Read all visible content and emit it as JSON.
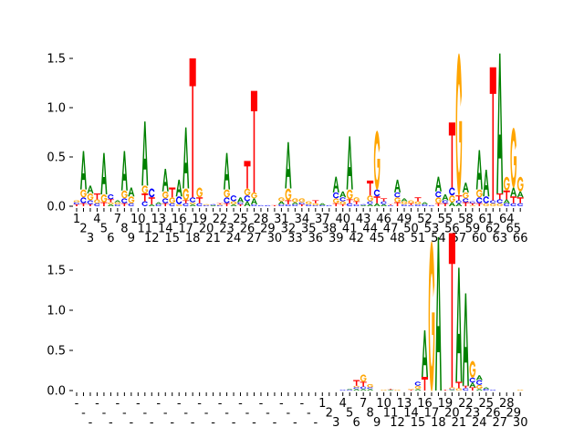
{
  "colors": {
    "A": "#008000",
    "C": "#0000ff",
    "G": "#ffa500",
    "T": "#ff0000"
  },
  "chart_data": [
    {
      "type": "sequence-logo",
      "title": "",
      "xlabel": "",
      "ylabel": "",
      "ylim": [
        0,
        1.6
      ],
      "yticks": [
        "0.0",
        "0.5",
        "1.0",
        "1.5"
      ],
      "ytick_values": [
        0,
        0.5,
        1.0,
        1.5
      ],
      "xtick_labels": [
        "1",
        "2",
        "3",
        "4",
        "5",
        "6",
        "7",
        "8",
        "9",
        "10",
        "11",
        "12",
        "13",
        "14",
        "15",
        "16",
        "17",
        "18",
        "19",
        "20",
        "21",
        "22",
        "23",
        "24",
        "25",
        "26",
        "27",
        "28",
        "29",
        "30",
        "31",
        "32",
        "33",
        "34",
        "35",
        "36",
        "37",
        "38",
        "39",
        "40",
        "41",
        "42",
        "43",
        "44",
        "45",
        "46",
        "47",
        "48",
        "49",
        "50",
        "51",
        "52",
        "53",
        "54",
        "55",
        "56",
        "57",
        "58",
        "59",
        "60",
        "61",
        "62",
        "63",
        "64",
        "65",
        "66"
      ],
      "stacks": [
        "T.02 C.02 G.02",
        "T.03 C.06 G.08 A.39",
        "T.02 C.04 G.07 A.08",
        "C.03 G.04 T.06",
        "T.04 G.08 A.42",
        "A.02 G.02 T.03 C.05",
        "C.02 G.02 A.02",
        "T.03 C.05 G.08 A.40",
        "C.03 G.07 A.09",
        "",
        "C.05 T.08 G.08 A.65",
        "A.02 T.07 C.09",
        "C.02 A.02",
        "T.03 C.05 G.07 A.23",
        "C.03 G.06 T.10",
        "G.02 C.08 A.17",
        "C.03 T.03 G.12 A.62",
        "A.02 G.02 C.05 T1.41",
        "C.03 T.06 G.10",
        "C.01 G.01",
        "A.01 C.01",
        "C.01 G.01 T.01",
        "T.03 C.06 G.08 A.37",
        "A.02 G.03 C.06",
        "T.02 C.02 A.05",
        "A.05 C.06 G.07 T.28",
        "C.02 A.06 G.06 T1.03",
        "C.01",
        "C.01",
        "T.01",
        "C.02 A.03 G.04",
        "C.02 T.04 G.12 A.47",
        "C.02 A.02 G.04",
        "T.02 C.02 G.04",
        "C.02 G.03",
        "C.01 G.02 T.03",
        "C.01 A.02",
        "C.01",
        "T.03 G.05 C.06 A.16",
        "T.02 G.03 C.04 A.06",
        "C.03 T.04 G.10 A.54",
        "C.02 T.03 G.04",
        "A.01 C.01",
        "A.02 C.03 G.06 T.15",
        "A.03 T.07 C.07 G.60",
        "A.02 C.03 T.03",
        "C.01 T.01",
        "T.04 G.05 C.05 A.13",
        "C.02 G.03 A.03",
        "C.01 T.02 G.03",
        "C.02 G.03 T.04",
        "C.02 A.02",
        "C.01",
        "T.03 G.06 C.06 A.15",
        "T.03 C.03 A.06",
        "A.04 G.07 C.08 T.66",
        "A.03 C.03 T.05 G1.45",
        "T.04 C.04 G.06 A.10",
        "G.01 T.02 C.02",
        "T.03 C.06 G.08 A.40",
        "G.03 C.07 A.27",
        "G.03 C.03 T1.35",
        "G.03 C.04 T.06 A1.42",
        "C.03 A.04 T.09 G.14",
        "C.03 T.07 A.09 G.61",
        "C.03 T.06 A.06 G.15"
      ]
    },
    {
      "type": "sequence-logo",
      "title": "",
      "xlabel": "",
      "ylabel": "",
      "ylim": [
        0,
        1.95
      ],
      "yticks": [
        "0.0",
        "0.5",
        "1.0",
        "1.5"
      ],
      "ytick_values": [
        0,
        0.5,
        1.0,
        1.5
      ],
      "xtick_labels": [
        "-",
        "-",
        "-",
        "-",
        "-",
        "-",
        "-",
        "-",
        "-",
        "-",
        "-",
        "-",
        "-",
        "-",
        "-",
        "-",
        "-",
        "-",
        "-",
        "-",
        "-",
        "-",
        "-",
        "-",
        "-",
        "-",
        "-",
        "-",
        "-",
        "-",
        "-",
        "-",
        "-",
        "-",
        "-",
        "-",
        "1",
        "2",
        "3",
        "4",
        "5",
        "6",
        "7",
        "8",
        "9",
        "10",
        "11",
        "12",
        "13",
        "14",
        "15",
        "16",
        "17",
        "18",
        "19",
        "20",
        "21",
        "22",
        "23",
        "24",
        "25",
        "26",
        "27",
        "28",
        "29",
        "30"
      ],
      "stacks": [
        "",
        "",
        "",
        "",
        "",
        "",
        "",
        "",
        "",
        "",
        "",
        "",
        "",
        "",
        "",
        "",
        "",
        "",
        "",
        "",
        "",
        "",
        "",
        "",
        "",
        "",
        "",
        "",
        "",
        "",
        "",
        "",
        "",
        "",
        "",
        "",
        "",
        "",
        "",
        "C.01",
        "C.01 A.01",
        "A.02 C.02 G.02 T.07",
        "A.02 C.03 T.06 G.09",
        "A.02 C.02 G.04",
        "",
        "G.01",
        "A.01 T.01",
        "G.01",
        "",
        "T.01 G.01",
        "A.02 G.04 C.05",
        "T.17 A.58",
        "G1.87",
        "A1.91",
        "T.01",
        "A.01 C.01 G.02 T1.92",
        "G.03 T.08 A1.42",
        "C.03 T.03 A1.15",
        "T.04 A.06 C.06 G.21",
        "A.02 G.05 C.06 A.06",
        "C.02 A.02",
        "C.01",
        "",
        "",
        "",
        "G.01"
      ]
    }
  ]
}
